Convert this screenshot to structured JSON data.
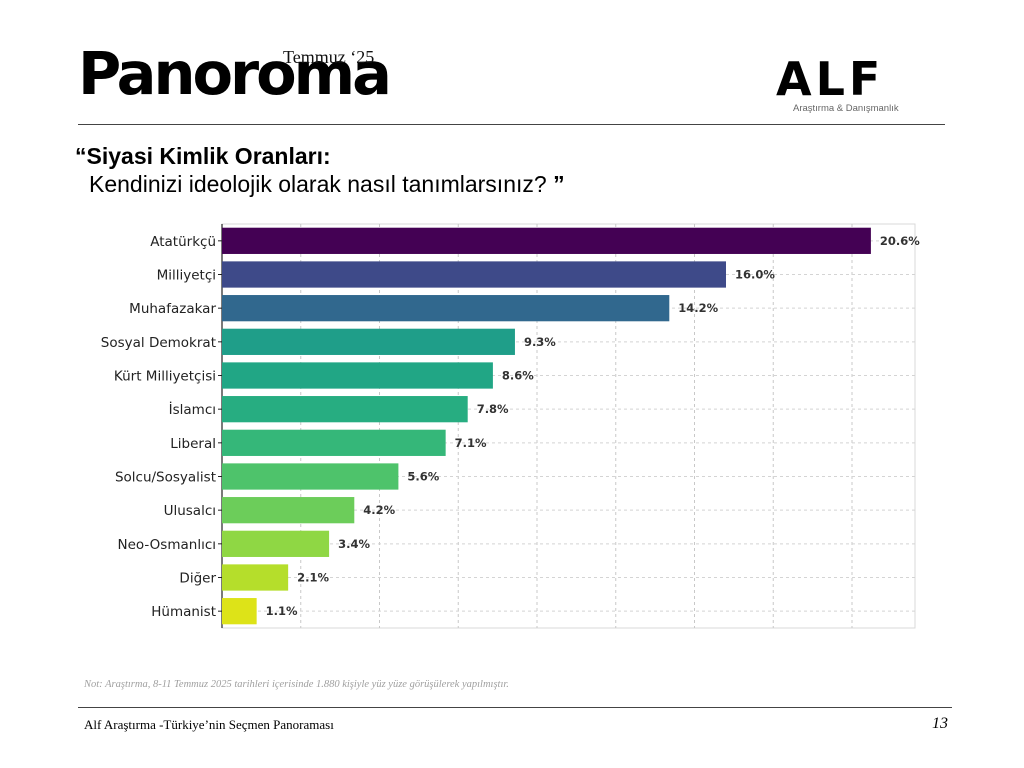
{
  "header": {
    "publication": "Panoroma",
    "edition": "Temmuz ‘25",
    "org_logo": "ALF",
    "org_tagline": "Araştırma & Danışmanlık"
  },
  "slide": {
    "title_line1": "“Siyasi Kimlik Oranları:",
    "title_line2": "Kendinizi ideolojik olarak nasıl tanımlarsınız?",
    "title_close_quote": "”"
  },
  "chart_data": {
    "type": "bar",
    "orientation": "horizontal",
    "categories": [
      "Atatürkçü",
      "Milliyetçi",
      "Muhafazakar",
      "Sosyal Demokrat",
      "Kürt Milliyetçisi",
      "İslamcı",
      "Liberal",
      "Solcu/Sosyalist",
      "Ulusalcı",
      "Neo-Osmanlıcı",
      "Diğer",
      "Hümanist"
    ],
    "values": [
      20.6,
      16.0,
      14.2,
      9.3,
      8.6,
      7.8,
      7.1,
      5.6,
      4.2,
      3.4,
      2.1,
      1.1
    ],
    "value_labels": [
      "20.6%",
      "16.0%",
      "14.2%",
      "9.3%",
      "8.6%",
      "7.8%",
      "7.1%",
      "5.6%",
      "4.2%",
      "3.4%",
      "2.1%",
      "1.1%"
    ],
    "colors": [
      "#440154",
      "#3e4a89",
      "#31688e",
      "#1f9e89",
      "#21a685",
      "#27ad81",
      "#35b779",
      "#4ec36b",
      "#6ccd5a",
      "#8fd744",
      "#b5de2b",
      "#dde318"
    ],
    "xlim": [
      0,
      22
    ],
    "grid": true,
    "xlabel": "",
    "ylabel": ""
  },
  "footer": {
    "note": "Not: Araştırma, 8-11 Temmuz 2025 tarihleri içerisinde 1.880 kişiyle yüz yüze görüşülerek yapılmıştır.",
    "source": "Alf Araştırma -Türkiye’nin Seçmen Panoraması",
    "page_number": "13"
  }
}
